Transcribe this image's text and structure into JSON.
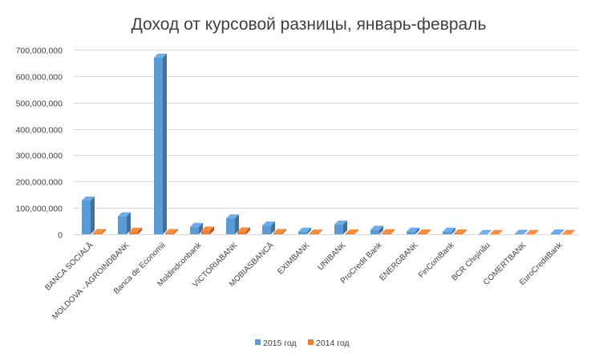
{
  "chart_data": {
    "type": "bar",
    "title": "Доход от курсовой разницы, январь-февраль",
    "xlabel": "",
    "ylabel": "",
    "ylim": [
      0,
      700000000
    ],
    "yticks": [
      0,
      100000000,
      200000000,
      300000000,
      400000000,
      500000000,
      600000000,
      700000000
    ],
    "ytick_labels": [
      "0",
      "100,000,000",
      "200,000,000",
      "300,000,000",
      "400,000,000",
      "500,000,000",
      "600,000,000",
      "700,000,000"
    ],
    "grid": true,
    "legend_position": "bottom",
    "style": "3d-clustered-column",
    "categories": [
      "BANCA SOCIALĂ",
      "MOLDOVA - AGROINDBANK",
      "Banca de Economii",
      "Moldindconbank",
      "VICTORIABANK",
      "MOBIASBANCĂ",
      "EXIMBANK",
      "UNIBANK",
      "ProCredit Bank",
      "ENERGBANK",
      "FinComBank",
      "BCR Chişinău",
      "COMERTBANK",
      "EuroCreditBank"
    ],
    "series": [
      {
        "name": "2015 год",
        "color": "#5b9bd5",
        "values": [
          128000000,
          68000000,
          670000000,
          28000000,
          60000000,
          33000000,
          10000000,
          37000000,
          17000000,
          10000000,
          10000000,
          1000000,
          2000000,
          3000000
        ]
      },
      {
        "name": "2014 год",
        "color": "#ed7d31",
        "values": [
          5000000,
          10000000,
          5000000,
          14000000,
          11000000,
          5000000,
          3000000,
          3000000,
          4000000,
          3000000,
          3000000,
          1000000,
          1000000,
          1000000
        ]
      }
    ]
  }
}
